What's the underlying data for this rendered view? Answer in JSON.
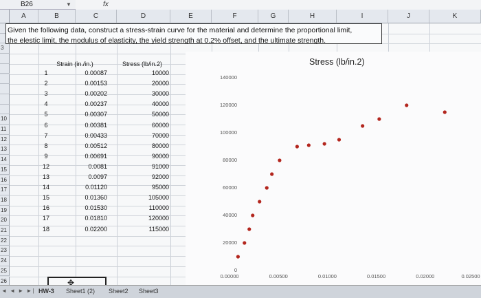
{
  "namebox": {
    "value": "B26"
  },
  "formula_bar": {
    "fx_label": "fx"
  },
  "columns": [
    "A",
    "B",
    "C",
    "D",
    "E",
    "F",
    "G",
    "H",
    "I",
    "J",
    "K"
  ],
  "rows": [
    "",
    "",
    "3",
    "",
    "",
    "",
    "",
    "",
    "",
    "10",
    "11",
    "12",
    "13",
    "14",
    "15",
    "16",
    "17",
    "18",
    "19",
    "20",
    "21",
    "22",
    "23",
    "24",
    "25",
    "26"
  ],
  "problem": {
    "line1": "Given the following data, construct a stress-strain curve for the material and determine the proportional limit,",
    "line2": "the elestic limit, the modulus of elasticity, the yield strength at 0.2% offset, and the ultimate strength."
  },
  "table": {
    "header_strain": "Strain (in./in.)",
    "header_stress": "Stress (lb/in.2)",
    "rows": [
      {
        "n": "1",
        "strain": "0.00087",
        "stress": "10000"
      },
      {
        "n": "2",
        "strain": "0.00153",
        "stress": "20000"
      },
      {
        "n": "3",
        "strain": "0.00202",
        "stress": "30000"
      },
      {
        "n": "4",
        "strain": "0.00237",
        "stress": "40000"
      },
      {
        "n": "5",
        "strain": "0.00307",
        "stress": "50000"
      },
      {
        "n": "6",
        "strain": "0.00381",
        "stress": "60000"
      },
      {
        "n": "7",
        "strain": "0.00433",
        "stress": "70000"
      },
      {
        "n": "8",
        "strain": "0.00512",
        "stress": "80000"
      },
      {
        "n": "9",
        "strain": "0.00691",
        "stress": "90000"
      },
      {
        "n": "12",
        "strain": "0.0081",
        "stress": "91000"
      },
      {
        "n": "13",
        "strain": "0.0097",
        "stress": "92000"
      },
      {
        "n": "14",
        "strain": "0.01120",
        "stress": "95000"
      },
      {
        "n": "15",
        "strain": "0.01360",
        "stress": "105000"
      },
      {
        "n": "16",
        "strain": "0.01530",
        "stress": "110000"
      },
      {
        "n": "17",
        "strain": "0.01810",
        "stress": "120000"
      },
      {
        "n": "18",
        "strain": "0.02200",
        "stress": "115000"
      }
    ]
  },
  "chart_data": {
    "type": "scatter",
    "title": "Stress (lb/in.2)",
    "x": [
      0.00087,
      0.00153,
      0.00202,
      0.00237,
      0.00307,
      0.00381,
      0.00433,
      0.00512,
      0.00691,
      0.0081,
      0.0097,
      0.0112,
      0.0136,
      0.0153,
      0.0181,
      0.022
    ],
    "y": [
      10000,
      20000,
      30000,
      40000,
      50000,
      60000,
      70000,
      80000,
      90000,
      91000,
      92000,
      95000,
      105000,
      110000,
      120000,
      115000
    ],
    "xlim": [
      0,
      0.025
    ],
    "ylim": [
      0,
      140000
    ],
    "xticks": [
      "0.00000",
      "0.00500",
      "0.01000",
      "0.01500",
      "0.02000",
      "0.02500"
    ],
    "yticks": [
      "0",
      "20000",
      "40000",
      "60000",
      "80000",
      "100000",
      "120000",
      "140000"
    ],
    "marker_color": "#b3261e"
  },
  "tabs": {
    "nav": "◄ ◄ ► ►|",
    "items": [
      "HW-3",
      "Sheet1 (2)",
      "Sheet2",
      "Sheet3"
    ]
  }
}
